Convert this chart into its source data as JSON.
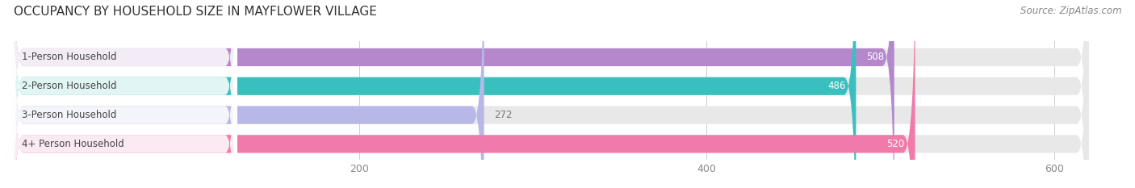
{
  "title": "OCCUPANCY BY HOUSEHOLD SIZE IN MAYFLOWER VILLAGE",
  "source": "Source: ZipAtlas.com",
  "categories": [
    "1-Person Household",
    "2-Person Household",
    "3-Person Household",
    "4+ Person Household"
  ],
  "values": [
    508,
    486,
    272,
    520
  ],
  "bar_colors": [
    "#b588cc",
    "#3abfbf",
    "#b8b8e8",
    "#f07aaa"
  ],
  "bar_bg_color": "#e8e8e8",
  "label_bg_color": "#ffffff",
  "label_colors": [
    "white",
    "white",
    "#777777",
    "white"
  ],
  "value_colors": [
    "white",
    "white",
    "#777777",
    "white"
  ],
  "xlim": [
    0,
    640
  ],
  "xticks": [
    200,
    400,
    600
  ],
  "title_fontsize": 11,
  "source_fontsize": 8.5,
  "label_fontsize": 8.5,
  "value_fontsize": 8.5,
  "background_color": "#ffffff",
  "bar_height": 0.62,
  "bar_bg_max": 620
}
